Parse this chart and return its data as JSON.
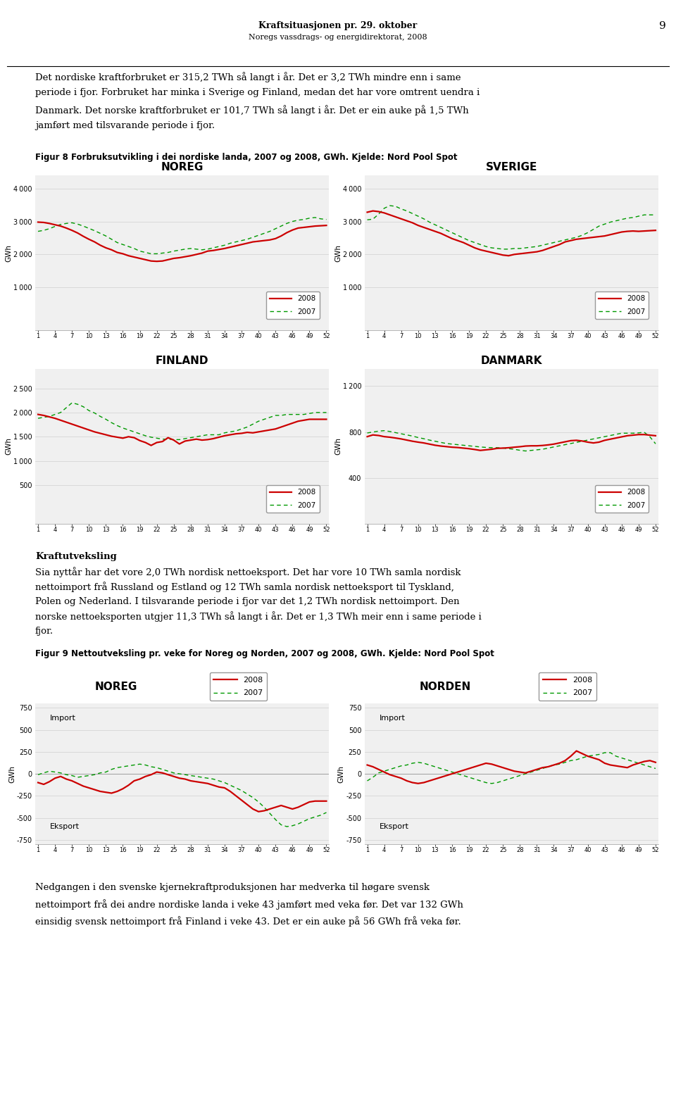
{
  "page_title": "Kraftsituasjonen pr. 29. oktober",
  "page_subtitle": "Noregs vassdrags- og energidirektorat, 2008",
  "page_number": "9",
  "para1_lines": [
    "Det nordiske kraftforbruket er 315,2 TWh så langt i år. Det er 3,2 TWh mindre enn i same",
    "periode i fjor. Forbruket har minka i Sverige og Finland, medan det har vore omtrent uendra i",
    "Danmark. Det norske kraftforbruket er 101,7 TWh så langt i år. Det er ein auke på 1,5 TWh",
    "jamført med tilsvarande periode i fjor."
  ],
  "fig8_caption": "Figur 8 Forbruksutvikling i dei nordiske landa, 2007 og 2008, GWh. Kjelde: Nord Pool Spot",
  "kraftutveksling_heading": "Kraftutveksling",
  "para2_lines": [
    "Sia nyttår har det vore 2,0 TWh nordisk nettoeksport. Det har vore 10 TWh samla nordisk",
    "nettoimport frå Russland og Estland og 12 TWh samla nordisk nettoeksport til Tyskland,",
    "Polen og Nederland. I tilsvarande periode i fjor var det 1,2 TWh nordisk nettoimport. Den",
    "norske nettoeksporten utgjer 11,3 TWh så langt i år. Det er 1,3 TWh meir enn i same periode i",
    "fjor."
  ],
  "fig9_caption": "Figur 9 Nettoutveksling pr. veke for Noreg og Norden, 2007 og 2008, GWh. Kjelde: Nord Pool Spot",
  "para3_lines": [
    "Nedgangen i den svenske kjernekraftproduksjonen har medverka til høgare svensk",
    "nettoimport frå dei andre nordiske landa i veke 43 jamført med veka før. Det var 132 GWh",
    "einsidig svensk nettoimport frå Finland i veke 43. Det er ein auke på 56 GWh frå veka før."
  ],
  "xticks": [
    1,
    4,
    7,
    10,
    13,
    16,
    19,
    22,
    25,
    28,
    31,
    34,
    37,
    40,
    43,
    46,
    49,
    52
  ],
  "noreg_2008": [
    2980,
    2970,
    2940,
    2900,
    2860,
    2800,
    2730,
    2650,
    2550,
    2460,
    2380,
    2280,
    2200,
    2140,
    2060,
    2020,
    1960,
    1920,
    1880,
    1840,
    1800,
    1790,
    1800,
    1840,
    1880,
    1900,
    1930,
    1960,
    2000,
    2040,
    2100,
    2120,
    2150,
    2180,
    2220,
    2260,
    2300,
    2340,
    2380,
    2400,
    2420,
    2440,
    2480,
    2560,
    2660,
    2740,
    2800,
    2820,
    2840,
    2860,
    2870,
    2880
  ],
  "noreg_2007": [
    2700,
    2730,
    2780,
    2850,
    2910,
    2940,
    2960,
    2920,
    2860,
    2790,
    2720,
    2640,
    2560,
    2460,
    2360,
    2300,
    2240,
    2180,
    2100,
    2060,
    2020,
    2020,
    2040,
    2060,
    2100,
    2130,
    2160,
    2180,
    2160,
    2140,
    2160,
    2200,
    2240,
    2280,
    2340,
    2380,
    2420,
    2460,
    2520,
    2580,
    2640,
    2700,
    2780,
    2860,
    2940,
    3000,
    3040,
    3060,
    3100,
    3120,
    3080,
    3060
  ],
  "sverige_2008": [
    3280,
    3320,
    3300,
    3260,
    3200,
    3140,
    3080,
    3020,
    2960,
    2880,
    2820,
    2760,
    2700,
    2640,
    2560,
    2480,
    2420,
    2360,
    2280,
    2200,
    2140,
    2100,
    2060,
    2020,
    1980,
    1960,
    2000,
    2020,
    2040,
    2060,
    2080,
    2120,
    2180,
    2240,
    2300,
    2380,
    2420,
    2460,
    2480,
    2500,
    2520,
    2540,
    2560,
    2600,
    2640,
    2680,
    2700,
    2710,
    2700,
    2710,
    2720,
    2730
  ],
  "sverige_2007": [
    3050,
    3070,
    3220,
    3400,
    3480,
    3460,
    3380,
    3320,
    3240,
    3160,
    3080,
    2980,
    2900,
    2820,
    2740,
    2660,
    2580,
    2500,
    2420,
    2360,
    2300,
    2240,
    2200,
    2180,
    2160,
    2160,
    2180,
    2180,
    2200,
    2220,
    2240,
    2280,
    2320,
    2360,
    2400,
    2440,
    2480,
    2520,
    2580,
    2660,
    2760,
    2860,
    2920,
    2980,
    3020,
    3060,
    3100,
    3120,
    3160,
    3200,
    3200,
    3200
  ],
  "finland_2008": [
    1960,
    1940,
    1910,
    1880,
    1840,
    1800,
    1760,
    1720,
    1680,
    1640,
    1600,
    1570,
    1540,
    1510,
    1490,
    1470,
    1500,
    1480,
    1420,
    1380,
    1320,
    1380,
    1400,
    1480,
    1430,
    1350,
    1410,
    1430,
    1450,
    1430,
    1440,
    1460,
    1490,
    1520,
    1540,
    1560,
    1570,
    1590,
    1580,
    1600,
    1620,
    1640,
    1660,
    1700,
    1740,
    1780,
    1820,
    1840,
    1860,
    1860,
    1860,
    1860
  ],
  "finland_2007": [
    1880,
    1900,
    1920,
    1960,
    2000,
    2100,
    2200,
    2170,
    2120,
    2040,
    1990,
    1920,
    1860,
    1790,
    1730,
    1680,
    1640,
    1600,
    1560,
    1520,
    1490,
    1470,
    1450,
    1450,
    1440,
    1440,
    1460,
    1480,
    1500,
    1520,
    1540,
    1540,
    1540,
    1580,
    1600,
    1620,
    1660,
    1700,
    1760,
    1820,
    1860,
    1900,
    1940,
    1940,
    1960,
    1960,
    1960,
    1960,
    1980,
    2000,
    2000,
    2000
  ],
  "danmark_2008": [
    760,
    775,
    770,
    760,
    755,
    748,
    740,
    730,
    720,
    712,
    705,
    695,
    685,
    678,
    673,
    668,
    665,
    660,
    655,
    648,
    640,
    645,
    650,
    658,
    660,
    663,
    668,
    672,
    678,
    680,
    680,
    683,
    688,
    695,
    705,
    715,
    725,
    728,
    722,
    712,
    705,
    712,
    728,
    738,
    748,
    758,
    768,
    773,
    778,
    778,
    773,
    768
  ],
  "danmark_2007": [
    792,
    800,
    808,
    812,
    805,
    795,
    785,
    775,
    765,
    752,
    742,
    730,
    720,
    710,
    700,
    695,
    690,
    685,
    680,
    675,
    670,
    666,
    664,
    664,
    660,
    655,
    650,
    641,
    635,
    640,
    645,
    650,
    660,
    670,
    680,
    690,
    700,
    710,
    720,
    730,
    740,
    750,
    760,
    770,
    780,
    790,
    790,
    790,
    793,
    798,
    758,
    698
  ],
  "noreg_net_2008": [
    -100,
    -120,
    -90,
    -50,
    -30,
    -60,
    -80,
    -110,
    -140,
    -160,
    -180,
    -200,
    -210,
    -220,
    -200,
    -170,
    -130,
    -80,
    -60,
    -30,
    -10,
    20,
    10,
    -10,
    -30,
    -50,
    -60,
    -80,
    -90,
    -100,
    -110,
    -130,
    -150,
    -160,
    -200,
    -250,
    -300,
    -350,
    -400,
    -430,
    -420,
    -400,
    -380,
    -360,
    -380,
    -400,
    -380,
    -350,
    -320,
    -310,
    -310,
    -310
  ],
  "noreg_net_2007": [
    -10,
    10,
    30,
    20,
    10,
    -10,
    -20,
    -40,
    -30,
    -20,
    -10,
    10,
    20,
    50,
    70,
    80,
    90,
    100,
    110,
    100,
    80,
    70,
    50,
    30,
    10,
    0,
    -10,
    -20,
    -30,
    -40,
    -50,
    -60,
    -80,
    -100,
    -130,
    -160,
    -190,
    -230,
    -270,
    -320,
    -380,
    -450,
    -520,
    -580,
    -600,
    -590,
    -570,
    -540,
    -510,
    -490,
    -470,
    -440
  ],
  "norden_net_2008": [
    100,
    80,
    50,
    20,
    -10,
    -30,
    -50,
    -80,
    -100,
    -110,
    -100,
    -80,
    -60,
    -40,
    -20,
    0,
    20,
    40,
    60,
    80,
    100,
    120,
    110,
    90,
    70,
    50,
    30,
    20,
    10,
    30,
    50,
    70,
    80,
    100,
    120,
    150,
    200,
    260,
    230,
    200,
    180,
    160,
    120,
    100,
    90,
    80,
    70,
    100,
    120,
    140,
    150,
    130
  ],
  "norden_net_2007": [
    -80,
    -40,
    10,
    30,
    50,
    70,
    90,
    100,
    120,
    130,
    120,
    100,
    80,
    60,
    40,
    20,
    0,
    -20,
    -40,
    -60,
    -80,
    -100,
    -110,
    -100,
    -80,
    -60,
    -40,
    -20,
    0,
    20,
    40,
    60,
    80,
    100,
    110,
    130,
    150,
    160,
    180,
    200,
    210,
    220,
    240,
    240,
    200,
    180,
    160,
    140,
    120,
    100,
    80,
    60
  ],
  "color_2008": "#cc0000",
  "color_2007": "#009900",
  "bg_color": "#ffffff",
  "text_color": "#000000",
  "grid_color": "#d0d0d0"
}
